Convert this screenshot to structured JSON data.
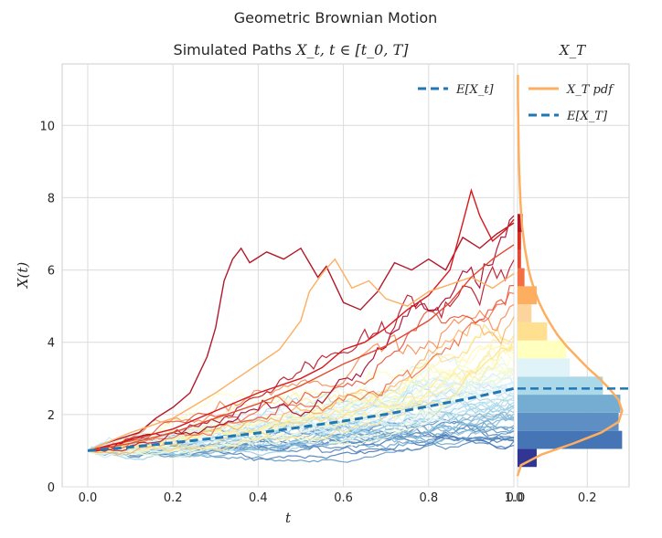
{
  "figure": {
    "suptitle": "Geometric Brownian Motion",
    "background": "#ffffff"
  },
  "chart_data": [
    {
      "id": "paths",
      "type": "line",
      "title": "Simulated Paths X_t, t ∈ [t_0, T]",
      "title_parts": {
        "lead": "Simulated Paths ",
        "main": "X_t, t ∈ [t_0, T]"
      },
      "xlabel": "t",
      "ylabel": "X(t)",
      "xlim": [
        -0.06,
        1.0
      ],
      "ylim": [
        0,
        11.7
      ],
      "xticks": [
        0.0,
        0.2,
        0.4,
        0.6,
        0.8,
        1.0
      ],
      "xtick_labels": [
        "0.0",
        "0.2",
        "0.4",
        "0.6",
        "0.8",
        "1.0"
      ],
      "yticks": [
        0,
        2,
        4,
        6,
        8,
        10
      ],
      "ytick_labels": [
        "0",
        "2",
        "4",
        "6",
        "8",
        "10"
      ],
      "grid": true,
      "legend": {
        "placement": "top-right",
        "entries": [
          {
            "label": "E[X_t]",
            "color": "#1f77b4",
            "style": "dashed"
          }
        ]
      },
      "colormap": "RdYlBu_r",
      "n_paths_shown": 60,
      "expected_curve": {
        "name": "E[X_t]",
        "x": [
          0.0,
          0.1,
          0.2,
          0.3,
          0.4,
          0.5,
          0.6,
          0.7,
          0.8,
          0.9,
          1.0
        ],
        "y": [
          1.0,
          1.1,
          1.22,
          1.35,
          1.49,
          1.65,
          1.82,
          2.01,
          2.23,
          2.46,
          2.72
        ],
        "color": "#1f78b4"
      },
      "highlight_paths": [
        {
          "x": [
            0.0,
            0.04,
            0.08,
            0.12,
            0.16,
            0.2,
            0.24,
            0.28,
            0.3,
            0.32,
            0.34,
            0.36,
            0.38,
            0.42,
            0.46,
            0.5,
            0.52,
            0.54,
            0.56,
            0.58,
            0.6,
            0.64,
            0.68,
            0.72,
            0.76,
            0.8,
            0.84,
            0.88,
            0.92,
            0.96,
            1.0
          ],
          "y": [
            1.0,
            1.2,
            1.35,
            1.5,
            1.9,
            2.2,
            2.6,
            3.6,
            4.4,
            5.7,
            6.3,
            6.6,
            6.2,
            6.5,
            6.3,
            6.6,
            6.2,
            5.8,
            6.1,
            5.6,
            5.1,
            4.9,
            5.4,
            6.2,
            6.0,
            6.3,
            6.0,
            6.9,
            6.6,
            7.0,
            7.3
          ],
          "color": "#b2182b"
        },
        {
          "x": [
            0.0,
            0.1,
            0.2,
            0.3,
            0.4,
            0.5,
            0.55,
            0.6,
            0.65,
            0.7,
            0.75,
            0.8,
            0.85,
            0.88,
            0.9,
            0.92,
            0.95,
            0.98,
            1.0
          ],
          "y": [
            1.0,
            1.3,
            1.6,
            2.1,
            2.6,
            3.0,
            3.3,
            3.8,
            4.0,
            4.4,
            4.9,
            5.3,
            6.0,
            7.3,
            8.2,
            7.5,
            6.8,
            7.1,
            7.4
          ],
          "color": "#d7191c"
        },
        {
          "x": [
            0.0,
            0.1,
            0.2,
            0.3,
            0.35,
            0.4,
            0.45,
            0.5,
            0.52,
            0.55,
            0.58,
            0.62,
            0.66,
            0.7,
            0.75,
            0.8,
            0.85,
            0.9,
            0.95,
            1.0
          ],
          "y": [
            1.0,
            1.5,
            1.9,
            2.6,
            3.0,
            3.4,
            3.8,
            4.6,
            5.4,
            5.9,
            6.3,
            5.5,
            5.7,
            5.2,
            5.0,
            5.4,
            5.6,
            5.8,
            5.5,
            5.9
          ],
          "color": "#fdae61"
        },
        {
          "x": [
            0.0,
            0.1,
            0.2,
            0.3,
            0.4,
            0.5,
            0.6,
            0.7,
            0.8,
            0.85,
            0.9,
            0.95,
            1.0
          ],
          "y": [
            1.0,
            1.2,
            1.5,
            1.9,
            2.3,
            2.8,
            3.4,
            3.9,
            4.6,
            5.1,
            5.8,
            6.3,
            6.7
          ],
          "color": "#e34a33"
        }
      ]
    },
    {
      "id": "terminal",
      "type": "bar",
      "orientation": "horizontal",
      "title": "X_T",
      "xlim": [
        0,
        0.32
      ],
      "ylim": [
        0,
        11.7
      ],
      "xticks": [
        0.0,
        0.2
      ],
      "xtick_labels": [
        "0.0",
        "0.2"
      ],
      "grid": true,
      "legend": {
        "placement": "top-right",
        "entries": [
          {
            "label": "X_T pdf",
            "color": "#fdae61",
            "style": "solid"
          },
          {
            "label": "E[X_T]",
            "color": "#1f77b4",
            "style": "dashed"
          }
        ]
      },
      "bins": [
        {
          "y0": 0.55,
          "y1": 1.05,
          "value": 0.055,
          "color": "#313695"
        },
        {
          "y0": 1.05,
          "y1": 1.55,
          "value": 0.3,
          "color": "#4575b4"
        },
        {
          "y0": 1.55,
          "y1": 2.05,
          "value": 0.29,
          "color": "#5e8fc4"
        },
        {
          "y0": 2.05,
          "y1": 2.55,
          "value": 0.295,
          "color": "#74add1"
        },
        {
          "y0": 2.55,
          "y1": 3.05,
          "value": 0.245,
          "color": "#abd9e9"
        },
        {
          "y0": 3.05,
          "y1": 3.55,
          "value": 0.15,
          "color": "#e0f3f8"
        },
        {
          "y0": 3.55,
          "y1": 4.05,
          "value": 0.14,
          "color": "#ffffbf"
        },
        {
          "y0": 4.05,
          "y1": 4.55,
          "value": 0.085,
          "color": "#fee090"
        },
        {
          "y0": 4.55,
          "y1": 5.05,
          "value": 0.04,
          "color": "#fdd49e"
        },
        {
          "y0": 5.05,
          "y1": 5.55,
          "value": 0.055,
          "color": "#fdae61"
        },
        {
          "y0": 5.55,
          "y1": 6.05,
          "value": 0.02,
          "color": "#f46d43"
        },
        {
          "y0": 6.05,
          "y1": 6.55,
          "value": 0.01,
          "color": "#e34a33"
        },
        {
          "y0": 6.55,
          "y1": 7.05,
          "value": 0.01,
          "color": "#d7301f"
        },
        {
          "y0": 7.05,
          "y1": 7.55,
          "value": 0.015,
          "color": "#b2182b"
        }
      ],
      "pdf": {
        "name": "X_T pdf",
        "y": [
          0.3,
          0.6,
          0.9,
          1.2,
          1.5,
          1.8,
          2.1,
          2.4,
          2.7,
          3.0,
          3.3,
          3.6,
          3.9,
          4.2,
          4.5,
          4.8,
          5.1,
          5.4,
          5.7,
          6.0,
          6.6,
          7.2,
          7.8,
          8.4,
          9.0,
          9.6,
          10.2,
          10.8,
          11.4
        ],
        "x": [
          0.0,
          0.01,
          0.07,
          0.16,
          0.24,
          0.29,
          0.3,
          0.29,
          0.265,
          0.235,
          0.2,
          0.17,
          0.14,
          0.115,
          0.095,
          0.077,
          0.062,
          0.05,
          0.04,
          0.032,
          0.021,
          0.013,
          0.009,
          0.006,
          0.004,
          0.003,
          0.002,
          0.001,
          0.001
        ],
        "color": "#fdae61"
      },
      "expected_value": {
        "name": "E[X_T]",
        "y": 2.72,
        "color": "#1f77b4"
      }
    }
  ]
}
